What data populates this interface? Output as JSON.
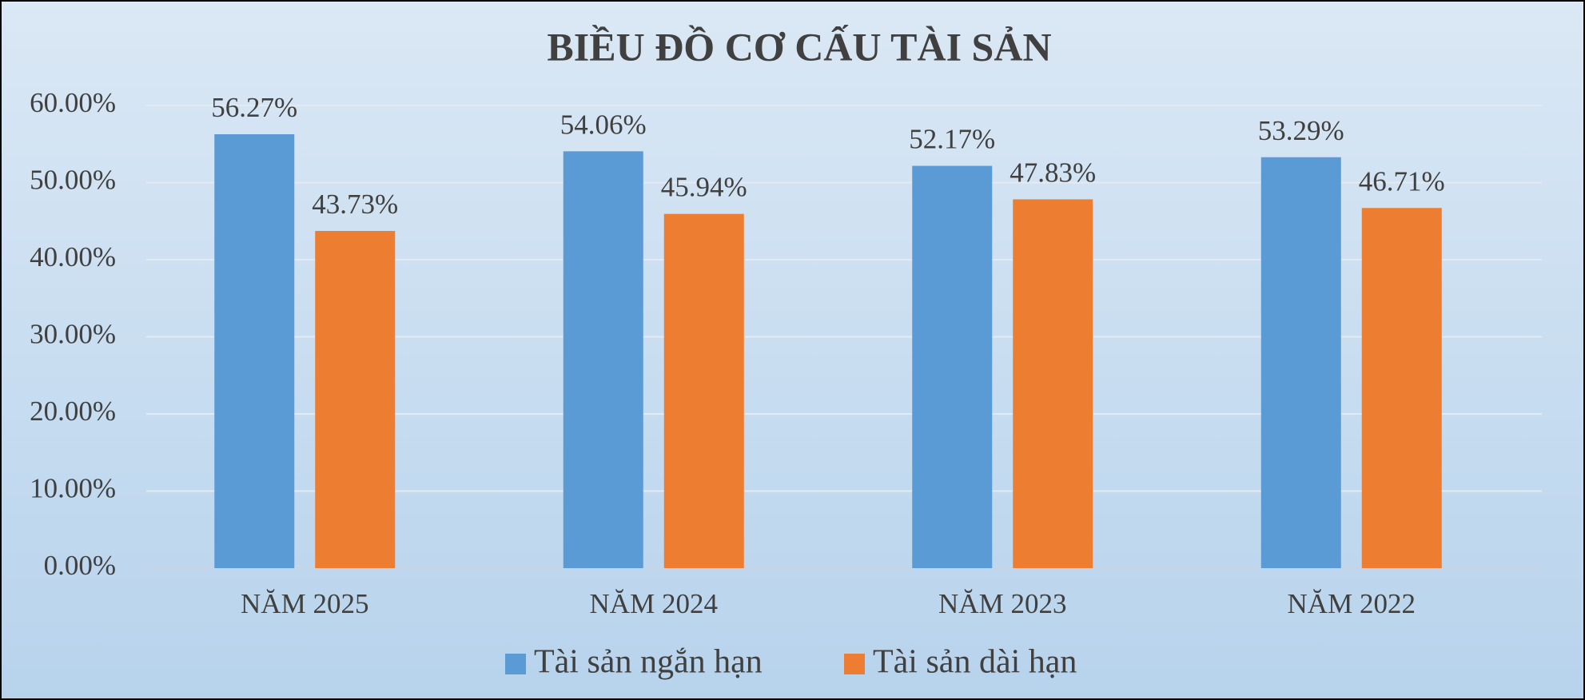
{
  "chart_data": {
    "type": "bar",
    "title": "BIỀU ĐỒ CƠ CẤU TÀI SẢN",
    "categories": [
      "NĂM 2025",
      "NĂM 2024",
      "NĂM 2023",
      "NĂM 2022"
    ],
    "series": [
      {
        "name": "Tài sản ngắn hạn",
        "color": "#5b9bd5",
        "values": [
          56.27,
          54.06,
          52.17,
          53.29
        ],
        "value_labels": [
          "56.27%",
          "54.06%",
          "52.17%",
          "53.29%"
        ]
      },
      {
        "name": "Tài sản dài hạn",
        "color": "#ed7d31",
        "values": [
          43.73,
          45.94,
          47.83,
          46.71
        ],
        "value_labels": [
          "43.73%",
          "45.94%",
          "47.83%",
          "46.71%"
        ]
      }
    ],
    "ylim": [
      0,
      60
    ],
    "yticks": [
      {
        "value": 0,
        "label": "0.00%"
      },
      {
        "value": 10,
        "label": "10.00%"
      },
      {
        "value": 20,
        "label": "20.00%"
      },
      {
        "value": 30,
        "label": "30.00%"
      },
      {
        "value": 40,
        "label": "40.00%"
      },
      {
        "value": 50,
        "label": "50.00%"
      },
      {
        "value": 60,
        "label": "60.00%"
      }
    ],
    "grid": true,
    "legend": "bottom"
  }
}
